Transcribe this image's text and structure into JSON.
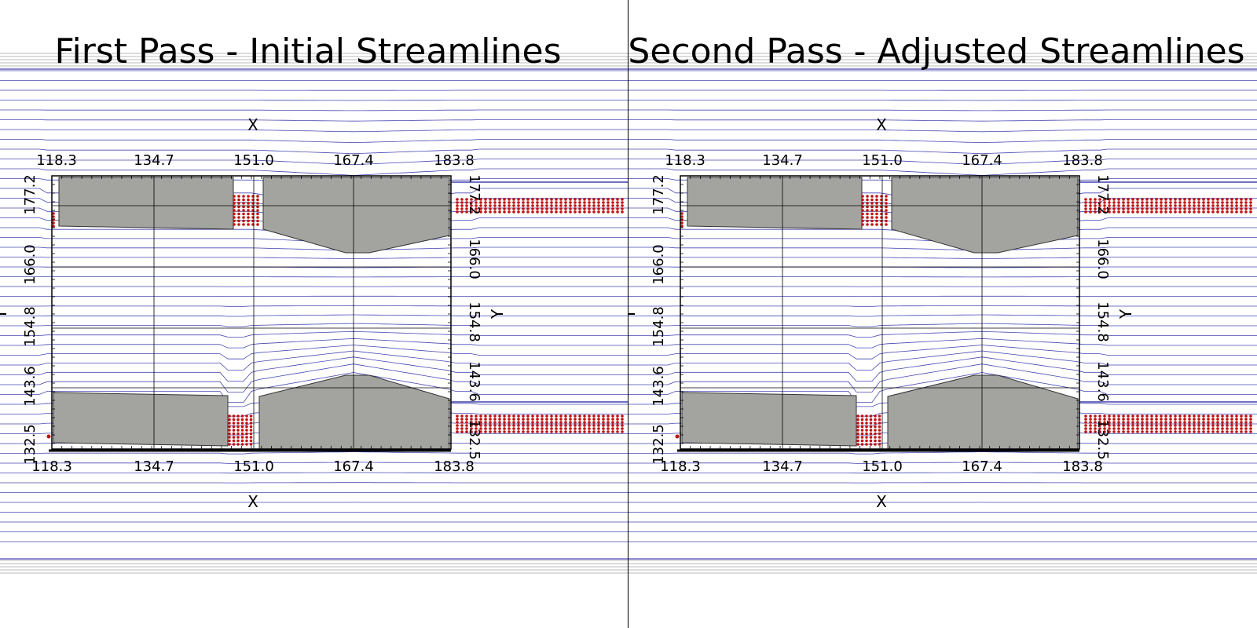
{
  "views": [
    {
      "title": "First Pass - Initial Streamlines",
      "axis_x_title": "X",
      "axis_y_title": "Y",
      "x_ticks": [
        "118.3",
        "134.7",
        "151.0",
        "167.4",
        "183.8"
      ],
      "x_ticks_bottom": [
        "118.3",
        "134.7",
        "151.0",
        "167.4",
        "183.8"
      ],
      "y_ticks": [
        "177.2",
        "166.0",
        "154.8",
        "143.6",
        "132.5"
      ]
    },
    {
      "title": "Second Pass - Adjusted Streamlines",
      "axis_x_title": "X",
      "axis_y_title": "Y",
      "x_ticks": [
        "118.3",
        "134.7",
        "151.0",
        "167.4",
        "183.8"
      ],
      "x_ticks_bottom": [
        "118.3",
        "134.7",
        "151.0",
        "167.4",
        "183.8"
      ],
      "y_ticks": [
        "177.2",
        "166.0",
        "154.8",
        "143.6",
        "132.5"
      ]
    }
  ],
  "colors": {
    "streamline": "#1a1aa0",
    "obstacle_fill": "#a3a3a0",
    "seed_point": "#c01010",
    "frame": "#000000",
    "background": "#ffffff"
  }
}
